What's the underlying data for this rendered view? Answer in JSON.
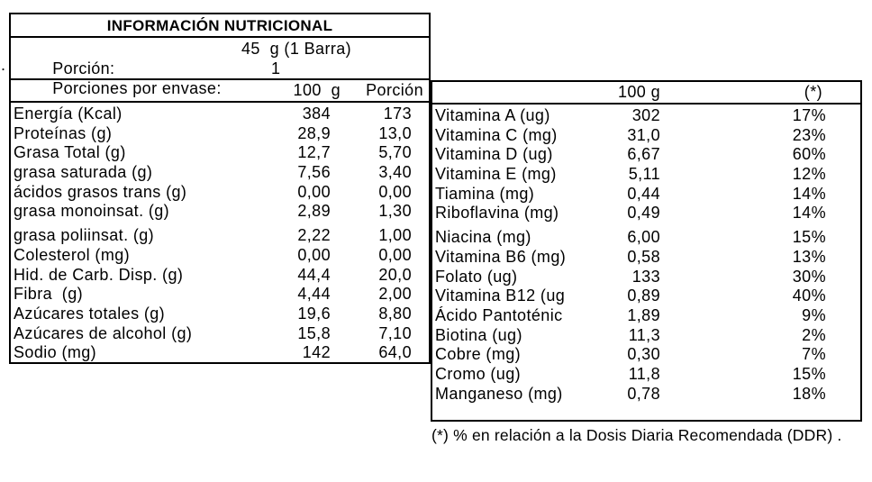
{
  "stray_mark": ".",
  "left_table": {
    "title": "INFORMACIÓN NUTRICIONAL",
    "serving": {
      "label": "Porción:",
      "value": "45  g (1 Barra)"
    },
    "servings_per_pack": {
      "label": "Porciones por envase:",
      "value": "1"
    },
    "columns": {
      "col1": "100  g",
      "col2": "Porción"
    },
    "rows": [
      {
        "label": "Energía (Kcal)",
        "per100": "384",
        "portion": "173"
      },
      {
        "label": "Proteínas (g)",
        "per100": "28,9",
        "portion": "13,0"
      },
      {
        "label": "Grasa Total (g)",
        "per100": "12,7",
        "portion": "5,70"
      },
      {
        "label": "grasa saturada (g)",
        "per100": "7,56",
        "portion": "3,40"
      },
      {
        "label": "ácidos grasos trans (g)",
        "per100": "0,00",
        "portion": "0,00"
      },
      {
        "label": "grasa monoinsat. (g)",
        "per100": "2,89",
        "portion": "1,30"
      },
      {
        "label": "grasa poliinsat. (g)",
        "per100": "2,22",
        "portion": "1,00"
      },
      {
        "label": "Colesterol (mg)",
        "per100": "0,00",
        "portion": "0,00"
      },
      {
        "label": "Hid. de Carb. Disp. (g)",
        "per100": "44,4",
        "portion": "20,0"
      },
      {
        "label": "Fibra  (g)",
        "per100": "4,44",
        "portion": "2,00"
      },
      {
        "label": "Azúcares totales (g)",
        "per100": "19,6",
        "portion": "8,80"
      },
      {
        "label": "Azúcares de alcohol (g)",
        "per100": "15,8",
        "portion": "7,10"
      },
      {
        "label": "Sodio (mg)",
        "per100": "142",
        "portion": "64,0"
      }
    ]
  },
  "right_table": {
    "columns": {
      "col1": "100 g",
      "col2": "(*)"
    },
    "rows": [
      {
        "label": "Vitamina A (ug)",
        "per100": "302",
        "ddr": "17%"
      },
      {
        "label": "Vitamina C (mg)",
        "per100": "31,0",
        "ddr": "23%"
      },
      {
        "label": "Vitamina D (ug)",
        "per100": "6,67",
        "ddr": "60%"
      },
      {
        "label": "Vitamina E (mg)",
        "per100": "5,11",
        "ddr": "12%"
      },
      {
        "label": "Tiamina (mg)",
        "per100": "0,44",
        "ddr": "14%"
      },
      {
        "label": "Riboflavina (mg)",
        "per100": "0,49",
        "ddr": "14%"
      },
      {
        "label": "Niacina (mg)",
        "per100": "6,00",
        "ddr": "15%"
      },
      {
        "label": "Vitamina B6 (mg)",
        "per100": "0,58",
        "ddr": "13%"
      },
      {
        "label": "Folato (ug)",
        "per100": "133",
        "ddr": "30%"
      },
      {
        "label": "Vitamina B12 (ug",
        "per100": "0,89",
        "ddr": "40%"
      },
      {
        "label": "Ácido Pantoténic",
        "per100": "1,89",
        "ddr": "9%"
      },
      {
        "label": "Biotina (ug)",
        "per100": "11,3",
        "ddr": "2%"
      },
      {
        "label": "Cobre (mg)",
        "per100": "0,30",
        "ddr": "7%"
      },
      {
        "label": "Cromo (ug)",
        "per100": "11,8",
        "ddr": "15%"
      },
      {
        "label": "Manganeso (mg)",
        "per100": "0,78",
        "ddr": "18%"
      }
    ]
  },
  "footnote": "(*) % en relación a la Dosis Diaria Recomendada (DDR) ."
}
